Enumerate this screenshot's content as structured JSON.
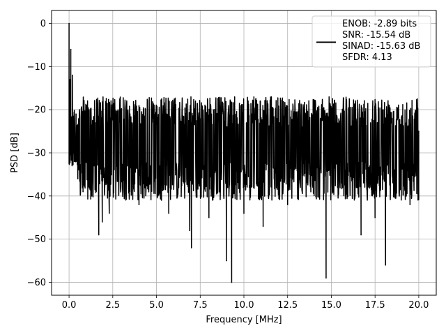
{
  "chart_data": {
    "type": "line",
    "title": "",
    "xlabel": "Frequency [MHz]",
    "ylabel": "PSD [dB]",
    "xlim": [
      -1.0,
      21.0
    ],
    "ylim": [
      -63.0,
      3.0
    ],
    "x_ticks": [
      0.0,
      2.5,
      5.0,
      7.5,
      10.0,
      12.5,
      15.0,
      17.5,
      20.0
    ],
    "x_tick_labels": [
      "0.0",
      "2.5",
      "5.0",
      "7.5",
      "10.0",
      "12.5",
      "15.0",
      "17.5",
      "20.0"
    ],
    "y_ticks": [
      0,
      -10,
      -20,
      -30,
      -40,
      -50,
      -60
    ],
    "y_tick_labels": [
      "0",
      "−10",
      "−20",
      "−30",
      "−40",
      "−50",
      "−60"
    ],
    "grid": true,
    "legend_position": "top-right",
    "legend_lines": [
      "ENOB: -2.89 bits",
      "SNR: -15.54 dB",
      "SINAD: -15.63 dB",
      "SFDR: 4.13"
    ],
    "series": [
      {
        "color": "#000000",
        "noise_floor_db": [
          -17,
          -41
        ],
        "x": [
          0.0,
          0.05,
          0.1,
          0.15,
          0.2,
          0.3,
          0.4,
          0.5,
          0.6,
          0.8,
          1.0,
          1.3,
          1.7,
          1.9,
          2.3,
          4.0,
          5.7,
          6.9,
          7.0,
          8.0,
          9.0,
          9.3,
          10.0,
          11.1,
          12.5,
          14.7,
          16.7,
          17.5,
          18.1,
          19.5,
          20.0
        ],
        "y": [
          0.0,
          -13,
          -6,
          -25,
          -12,
          -32,
          -21,
          -36,
          -20,
          -39,
          -19,
          -40,
          -49,
          -46,
          -44,
          -42,
          -44,
          -48,
          -52,
          -45,
          -55,
          -60,
          -44,
          -47,
          -42,
          -59,
          -49,
          -45,
          -56,
          -42,
          -25
        ]
      }
    ]
  }
}
